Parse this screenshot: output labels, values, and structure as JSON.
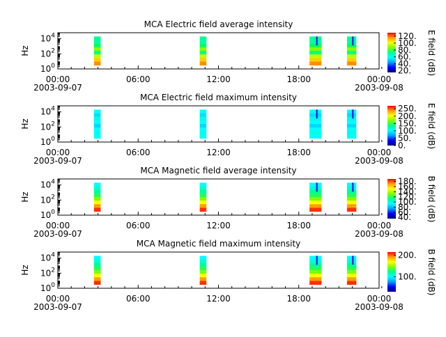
{
  "figure": {
    "colors": {
      "background": "#ffffff",
      "axes": "#000000",
      "colormap": [
        "#000080",
        "#0000ff",
        "#00a0ff",
        "#00ffff",
        "#00ff90",
        "#7fff00",
        "#ffff00",
        "#ff9f00",
        "#ff0000"
      ]
    }
  },
  "chart_data": [
    {
      "type": "heatmap",
      "title": "MCA  Electric field average intensity",
      "ylabel": "Hz",
      "y_scale": "log",
      "y_ticks": [
        {
          "base": "10",
          "exp": "0"
        },
        {
          "base": "10",
          "exp": "2"
        },
        {
          "base": "10",
          "exp": "4"
        }
      ],
      "x_ticks": [
        "00:00",
        "06:00",
        "12:00",
        "18:00",
        "00:00"
      ],
      "x_dates": [
        "2003-09-07",
        "2003-09-08"
      ],
      "colorbar_label": "E field (dB)",
      "colorbar_ticks": [
        "20.",
        "40.",
        "60.",
        "80.",
        "100.",
        "120."
      ],
      "colorbar_range": [
        15,
        130
      ],
      "intervals": [
        {
          "start_hour": 2.7,
          "end_hour": 3.2,
          "profile": "flat"
        },
        {
          "start_hour": 10.6,
          "end_hour": 11.1,
          "profile": "flat"
        },
        {
          "start_hour": 18.8,
          "end_hour": 19.7,
          "profile": "flat"
        },
        {
          "start_hour": 21.6,
          "end_hour": 22.3,
          "profile": "flat"
        }
      ]
    },
    {
      "type": "heatmap",
      "title": "MCA  Electric field maximum intensity",
      "ylabel": "Hz",
      "y_scale": "log",
      "y_ticks": [
        {
          "base": "10",
          "exp": "0"
        },
        {
          "base": "10",
          "exp": "2"
        },
        {
          "base": "10",
          "exp": "4"
        }
      ],
      "x_ticks": [
        "00:00",
        "06:00",
        "12:00",
        "18:00",
        "00:00"
      ],
      "x_dates": [
        "2003-09-07",
        "2003-09-08"
      ],
      "colorbar_label": "E field (dB)",
      "colorbar_ticks": [
        "0.",
        "50.",
        "100.",
        "150.",
        "200.",
        "250."
      ],
      "colorbar_range": [
        0,
        270
      ],
      "intervals": [
        {
          "start_hour": 2.7,
          "end_hour": 3.2,
          "profile": "cool"
        },
        {
          "start_hour": 10.6,
          "end_hour": 11.1,
          "profile": "cool"
        },
        {
          "start_hour": 18.8,
          "end_hour": 19.7,
          "profile": "cool"
        },
        {
          "start_hour": 21.6,
          "end_hour": 22.3,
          "profile": "cool"
        }
      ]
    },
    {
      "type": "heatmap",
      "title": "MCA  Magnetic field average intensity",
      "ylabel": "Hz",
      "y_scale": "log",
      "y_ticks": [
        {
          "base": "10",
          "exp": "0"
        },
        {
          "base": "10",
          "exp": "2"
        },
        {
          "base": "10",
          "exp": "4"
        }
      ],
      "x_ticks": [
        "00:00",
        "06:00",
        "12:00",
        "18:00",
        "00:00"
      ],
      "x_dates": [
        "2003-09-07",
        "2003-09-08"
      ],
      "colorbar_label": "B field (dB)",
      "colorbar_ticks": [
        "40.",
        "60.",
        "80.",
        "100.",
        "120.",
        "140.",
        "160.",
        "180."
      ],
      "colorbar_range": [
        35,
        190
      ],
      "intervals": [
        {
          "start_hour": 2.7,
          "end_hour": 3.2,
          "profile": "warm"
        },
        {
          "start_hour": 10.6,
          "end_hour": 11.1,
          "profile": "warm"
        },
        {
          "start_hour": 18.8,
          "end_hour": 19.7,
          "profile": "warm"
        },
        {
          "start_hour": 21.6,
          "end_hour": 22.3,
          "profile": "warm"
        }
      ]
    },
    {
      "type": "heatmap",
      "title": "MCA  Magnetic field maximum intensity",
      "ylabel": "Hz",
      "y_scale": "log",
      "y_ticks": [
        {
          "base": "10",
          "exp": "0"
        },
        {
          "base": "10",
          "exp": "2"
        },
        {
          "base": "10",
          "exp": "4"
        }
      ],
      "x_ticks": [
        "00:00",
        "06:00",
        "12:00",
        "18:00",
        "00:00"
      ],
      "x_dates": [
        "2003-09-07",
        "2003-09-08"
      ],
      "colorbar_label": "B field (dB)",
      "colorbar_ticks": [
        "100.",
        "200."
      ],
      "colorbar_range": [
        30,
        215
      ],
      "intervals": [
        {
          "start_hour": 2.7,
          "end_hour": 3.2,
          "profile": "warm"
        },
        {
          "start_hour": 10.6,
          "end_hour": 11.1,
          "profile": "warm"
        },
        {
          "start_hour": 18.8,
          "end_hour": 19.7,
          "profile": "warm"
        },
        {
          "start_hour": 21.6,
          "end_hour": 22.3,
          "profile": "warm"
        }
      ]
    }
  ]
}
